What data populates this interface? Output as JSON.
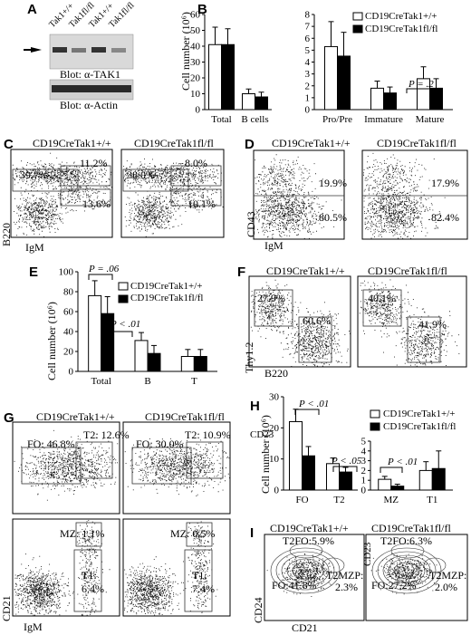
{
  "panels": {
    "A": {
      "letter": "A",
      "lanes": [
        "Tak1+/+",
        "Tak1fl/fl",
        "Tak1+/+",
        "Tak1fl/fl"
      ],
      "blot1": "Blot: α-TAK1",
      "blot2": "Blot: α-Actin"
    },
    "B": {
      "letter": "B",
      "ylabel": "Cell number (10⁶)",
      "legend": [
        "CD19CreTak1+/+",
        "CD19CreTak1fl/fl"
      ],
      "annot": "P = .2"
    },
    "C": {
      "letter": "C",
      "col1": "CD19CreTak1+/+",
      "col2": "CD19CreTak1fl/fl",
      "p1": [
        "39.7%",
        "11.2%",
        "13.6%"
      ],
      "p2": [
        "38.0%",
        "8.0%",
        "10.1%"
      ],
      "xaxis": "IgM",
      "yaxis": "B220"
    },
    "D": {
      "letter": "D",
      "col1": "CD19CreTak1+/+",
      "col2": "CD19CreTak1fl/fl",
      "p1": [
        "19.9%",
        "80.5%"
      ],
      "p2": [
        "17.9%",
        "82.4%"
      ],
      "xaxis": "IgM",
      "yaxis": "CD43"
    },
    "E": {
      "letter": "E",
      "ylabel": "Cell number (10⁶)",
      "legend": [
        "CD19CreTak1+/+",
        "CD19CreTak1fl/fl"
      ],
      "annot": [
        "P = .06",
        "P < .01"
      ]
    },
    "F": {
      "letter": "F",
      "col1": "CD19CreTak1+/+",
      "col2": "CD19CreTak1fl/fl",
      "p1": [
        "27.9%",
        "60.6%"
      ],
      "p2": [
        "40.1%",
        "41.9%"
      ],
      "xaxis": "B220",
      "yaxis": "Thy1.2"
    },
    "G": {
      "letter": "G",
      "col1": "CD19CreTak1+/+",
      "col2": "CD19CreTak1fl/fl",
      "top1": [
        "FO: 46.8%",
        "T2: 12.6%"
      ],
      "top2": [
        "FO: 30.0%",
        "T2: 10.9%"
      ],
      "bot1": [
        "MZ: 1.1%",
        "T1:",
        "6.4%"
      ],
      "bot2": [
        "MZ: 0.5%",
        "T1:",
        "7.4%"
      ],
      "yaxis_top": "CD23",
      "xaxis": "IgM",
      "yaxis": "CD21"
    },
    "H": {
      "letter": "H",
      "ylabel": "Cell number (10⁶)",
      "legend": [
        "CD19CreTak1+/+",
        "CD19CreTak1fl/fl"
      ],
      "annot": [
        "P < .01",
        "P < .05",
        "P < .01"
      ]
    },
    "I": {
      "letter": "I",
      "col1": "CD19CreTak1+/+",
      "col2": "CD19CreTak1fl/fl",
      "p1": [
        "T2FO:5.9%",
        "FO:41.8%",
        "T2MZP:",
        "2.3%"
      ],
      "p2": [
        "T2FO:6.3%",
        "FO:27.2%",
        "T2MZP:",
        "2.0%"
      ],
      "xaxis": "CD21",
      "yaxis": "CD24",
      "yaxis2": "CD23"
    }
  },
  "chart_data": [
    {
      "type": "bar",
      "panel": "B-left",
      "categories": [
        "Total",
        "B cells"
      ],
      "series": [
        {
          "name": "CD19CreTak1+/+",
          "values": [
            41,
            10
          ],
          "err": [
            11,
            3
          ]
        },
        {
          "name": "CD19CreTak1fl/fl",
          "values": [
            41,
            8
          ],
          "err": [
            10,
            3
          ]
        }
      ],
      "ylim": [
        0,
        60
      ],
      "yticks": [
        0,
        10,
        20,
        30,
        40,
        50,
        60
      ],
      "ylabel": "Cell number (10⁶)"
    },
    {
      "type": "bar",
      "panel": "B-right",
      "categories": [
        "Pro/Pre",
        "Immature",
        "Mature"
      ],
      "series": [
        {
          "name": "CD19CreTak1+/+",
          "values": [
            5.3,
            1.8,
            2.6
          ],
          "err": [
            2.1,
            0.6,
            1.0
          ]
        },
        {
          "name": "CD19CreTak1fl/fl",
          "values": [
            4.5,
            1.4,
            1.8
          ],
          "err": [
            2.0,
            0.5,
            0.8
          ]
        }
      ],
      "ylim": [
        0,
        8
      ],
      "yticks": [
        0,
        1,
        2,
        3,
        4,
        5,
        6,
        7,
        8
      ]
    },
    {
      "type": "bar",
      "panel": "E",
      "categories": [
        "Total",
        "B",
        "T"
      ],
      "series": [
        {
          "name": "CD19CreTak1+/+",
          "values": [
            76,
            31,
            15
          ],
          "err": [
            15,
            8,
            7
          ]
        },
        {
          "name": "CD19CreTak1fl/fl",
          "values": [
            58,
            18,
            15
          ],
          "err": [
            17,
            8,
            7
          ]
        }
      ],
      "ylim": [
        0,
        100
      ],
      "yticks": [
        0,
        20,
        40,
        60,
        80,
        100
      ],
      "ylabel": "Cell number (10⁶)"
    },
    {
      "type": "bar",
      "panel": "H-left",
      "categories": [
        "FO",
        "T2"
      ],
      "series": [
        {
          "name": "CD19CreTak1+/+",
          "values": [
            22,
            8.5
          ],
          "err": [
            4,
            1.8
          ]
        },
        {
          "name": "CD19CreTak1fl/fl",
          "values": [
            11,
            5.8
          ],
          "err": [
            3,
            1.5
          ]
        }
      ],
      "ylim": [
        0,
        30
      ],
      "yticks": [
        0,
        10,
        20,
        30
      ],
      "ylabel": "Cell number (10⁶)"
    },
    {
      "type": "bar",
      "panel": "H-right",
      "categories": [
        "MZ",
        "T1"
      ],
      "series": [
        {
          "name": "CD19CreTak1+/+",
          "values": [
            1.1,
            2.0
          ],
          "err": [
            0.3,
            0.9
          ]
        },
        {
          "name": "CD19CreTak1fl/fl",
          "values": [
            0.4,
            2.2
          ],
          "err": [
            0.2,
            1.8
          ]
        }
      ],
      "ylim": [
        0,
        5
      ],
      "yticks": [
        0,
        1,
        2,
        3,
        4,
        5
      ]
    }
  ]
}
